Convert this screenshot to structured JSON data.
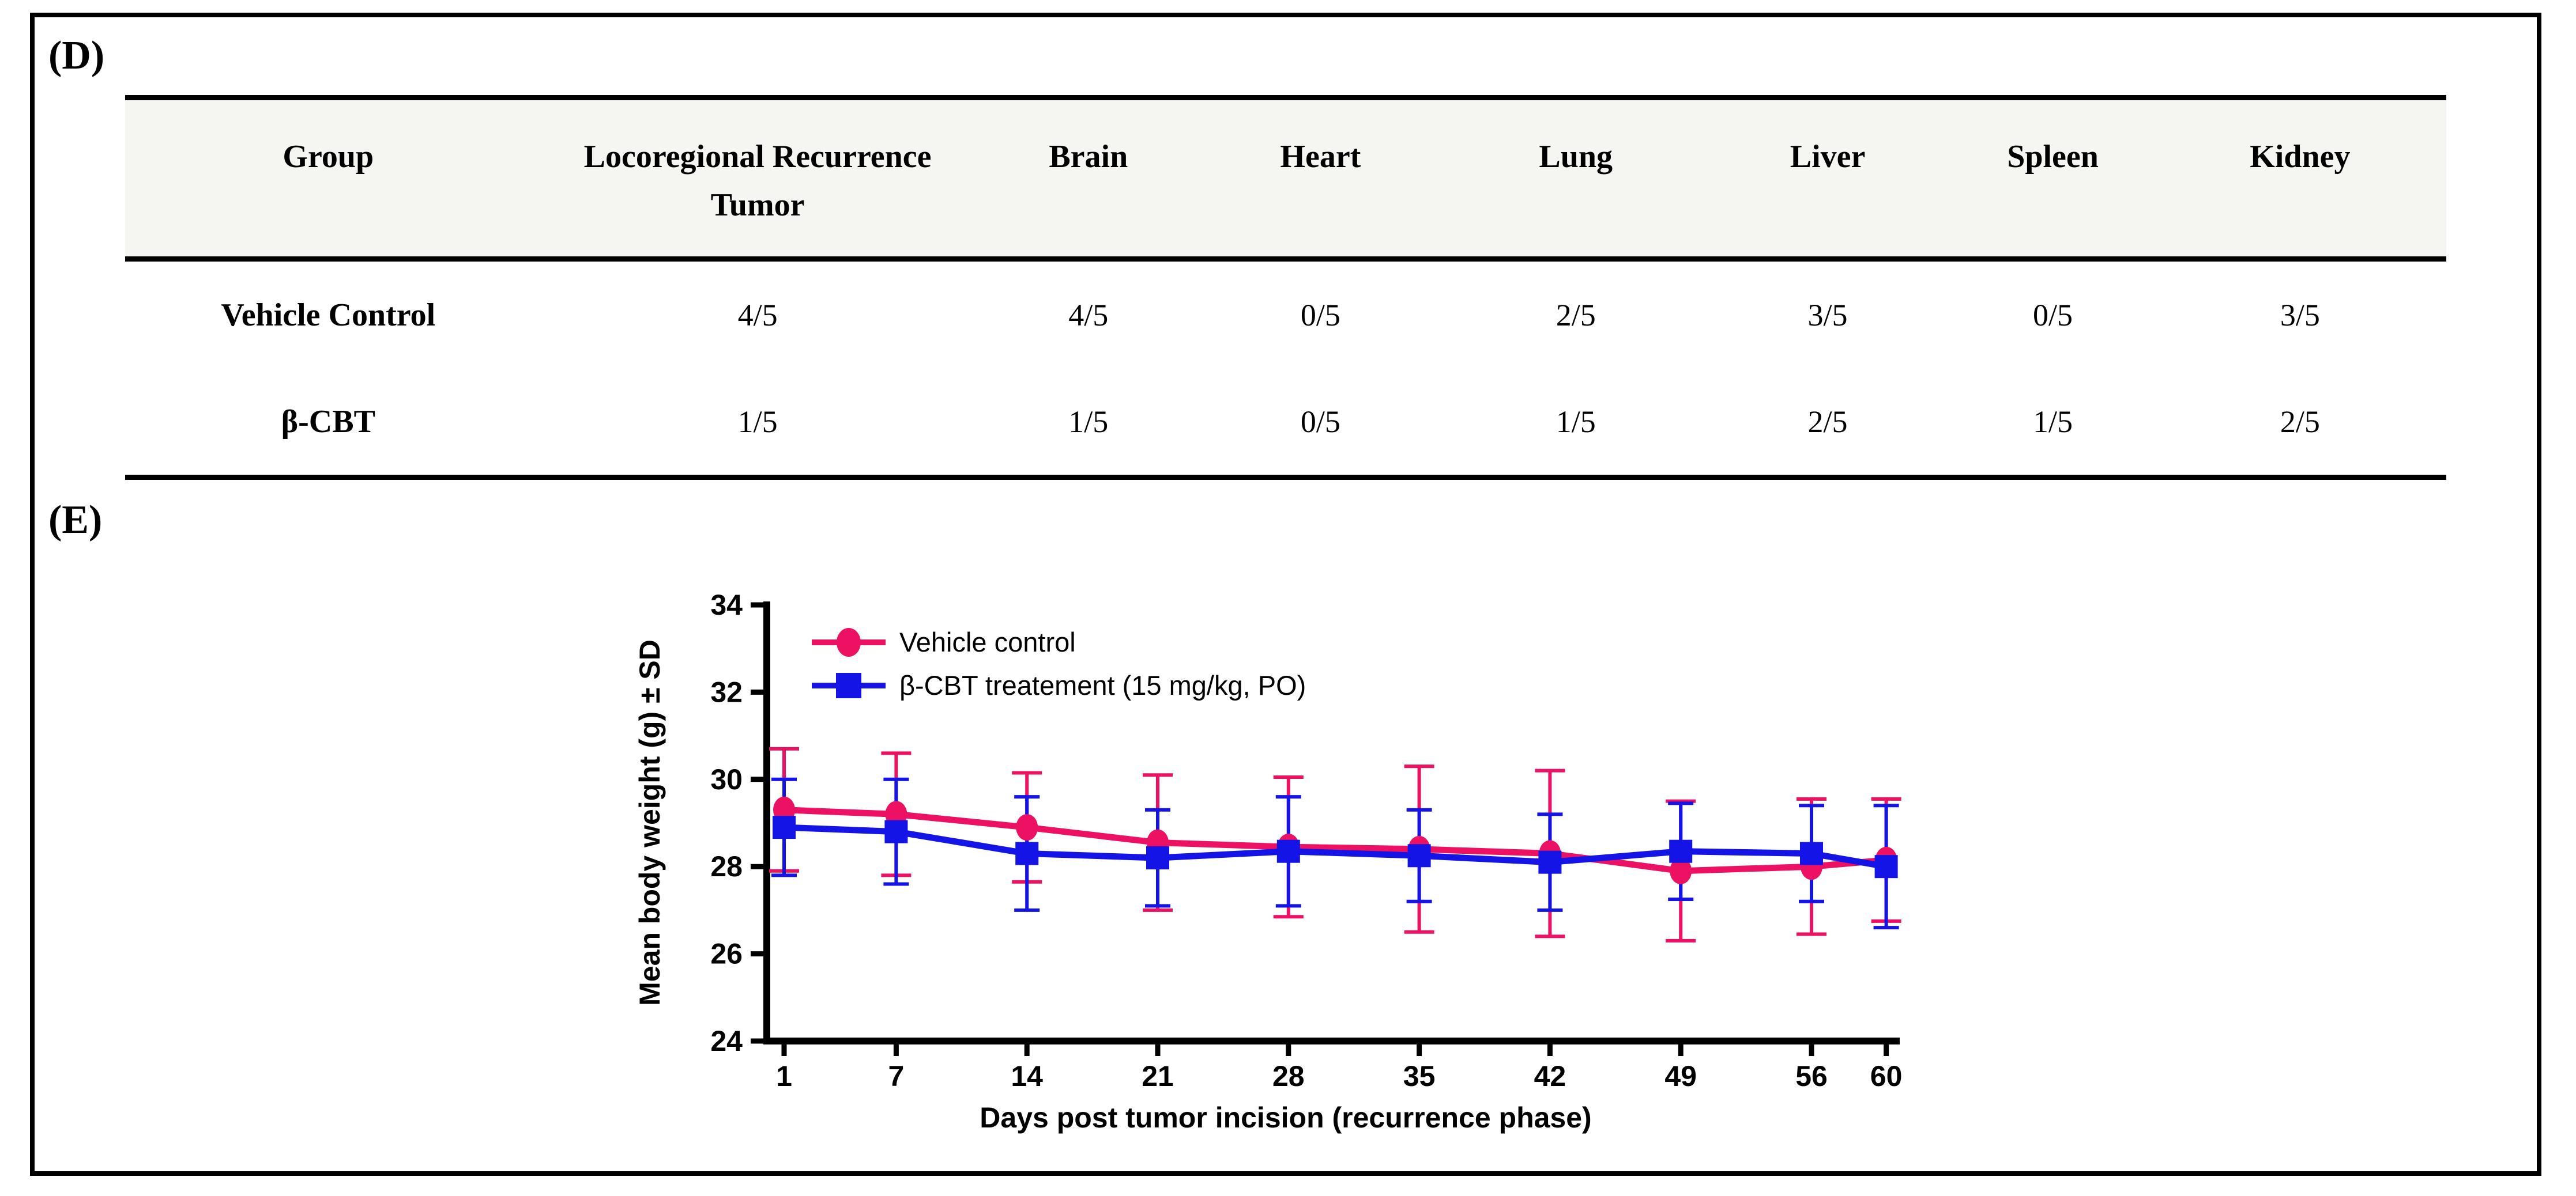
{
  "figure": {
    "panel_d_label": "(D)",
    "panel_e_label": "(E)"
  },
  "table": {
    "columns": [
      "Group",
      "Locoregional Recurrence Tumor",
      "Brain",
      "Heart",
      "Lung",
      "Liver",
      "Spleen",
      "Kidney"
    ],
    "rows": [
      {
        "group": "Vehicle Control",
        "values": [
          "4/5",
          "4/5",
          "0/5",
          "2/5",
          "3/5",
          "0/5",
          "3/5"
        ]
      },
      {
        "group": "β-CBT",
        "values": [
          "1/5",
          "1/5",
          "0/5",
          "1/5",
          "2/5",
          "1/5",
          "2/5"
        ]
      }
    ]
  },
  "chart_data": {
    "type": "line",
    "x": [
      1,
      7,
      14,
      21,
      28,
      35,
      42,
      49,
      56,
      60
    ],
    "xticks": [
      1,
      7,
      14,
      21,
      28,
      35,
      42,
      49,
      56,
      60
    ],
    "yticks": [
      24,
      26,
      28,
      30,
      32,
      34
    ],
    "ylim": [
      24,
      34
    ],
    "xlabel": "Days post tumor incision (recurrence phase)",
    "ylabel": "Mean body weight (g) ± SD",
    "grid": false,
    "legend_position": "inside top-left",
    "series": [
      {
        "name": "Vehicle control",
        "marker": "circle",
        "color": "#ED1164",
        "values": [
          29.3,
          29.2,
          28.9,
          28.55,
          28.45,
          28.4,
          28.3,
          27.9,
          28.0,
          28.15
        ],
        "sd": [
          1.4,
          1.4,
          1.25,
          1.55,
          1.6,
          1.9,
          1.9,
          1.6,
          1.55,
          1.4
        ]
      },
      {
        "name": "β-CBT treatement (15 mg/kg, PO)",
        "marker": "square",
        "color": "#1414E6",
        "values": [
          28.9,
          28.8,
          28.3,
          28.2,
          28.35,
          28.25,
          28.1,
          28.35,
          28.3,
          28.0
        ],
        "sd": [
          1.1,
          1.2,
          1.3,
          1.1,
          1.25,
          1.05,
          1.1,
          1.1,
          1.1,
          1.4
        ]
      }
    ]
  }
}
